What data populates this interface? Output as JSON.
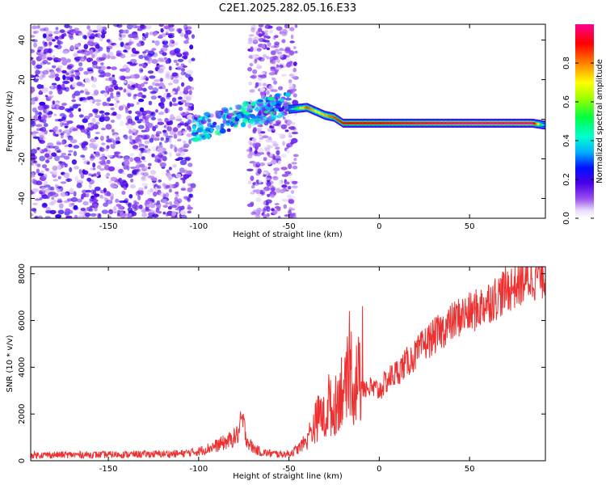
{
  "title": "C2E1.2025.282.05.16.E33",
  "chart_data": [
    {
      "type": "heatmap",
      "title": "",
      "xlabel": "Height of straight line (km)",
      "ylabel": "Frequency (Hz)",
      "xlim": [
        -193,
        92
      ],
      "ylim": [
        -50,
        48
      ],
      "xticks": [
        -150,
        -100,
        -50,
        0,
        50
      ],
      "yticks": [
        -40,
        -20,
        0,
        20,
        40
      ],
      "colorbar": {
        "label": "Normalized spectral amplitude",
        "range": [
          0,
          1
        ],
        "ticks": [
          0.0,
          0.2,
          0.4,
          0.6,
          0.8
        ],
        "colors": [
          "#ffffff",
          "#d8c8f8",
          "#8f40f0",
          "#5000e0",
          "#0000ff",
          "#00c0ff",
          "#00ffb0",
          "#00ff00",
          "#ffff00",
          "#ff8000",
          "#ff0000",
          "#ff0090"
        ]
      },
      "regions": [
        {
          "name": "noise",
          "x": [
            -193,
            -103
          ],
          "freq": [
            -50,
            48
          ],
          "amplitude": 0.15
        },
        {
          "name": "noise",
          "x": [
            -72,
            -46
          ],
          "freq": [
            -50,
            48
          ],
          "amplitude": 0.12
        },
        {
          "name": "signal-onset",
          "x": [
            -103,
            -50
          ],
          "freq_center": [
            -5,
            8
          ],
          "amplitude": 0.35
        }
      ],
      "signal_line": {
        "x": [
          -50,
          -40,
          -35,
          -30,
          -25,
          -20,
          0,
          20,
          50,
          85,
          92
        ],
        "freq": [
          5,
          6,
          4,
          2,
          1,
          -2,
          -2,
          -2,
          -2,
          -2,
          -3
        ],
        "amplitude": [
          0.3,
          0.85,
          0.7,
          0.75,
          0.85,
          0.9,
          0.9,
          0.95,
          1.0,
          1.0,
          0.3
        ]
      }
    },
    {
      "type": "line",
      "title": "",
      "xlabel": "Height of straight line (km)",
      "ylabel": "SNR (10 * v/v)",
      "xlim": [
        -193,
        92
      ],
      "ylim": [
        0,
        8300
      ],
      "xticks": [
        -150,
        -100,
        -50,
        0,
        50
      ],
      "yticks": [
        0,
        2000,
        4000,
        6000,
        8000
      ],
      "series": [
        {
          "name": "SNR",
          "color": "#ee3030",
          "x": [
            -193,
            -150,
            -110,
            -100,
            -90,
            -82,
            -78,
            -76,
            -73,
            -70,
            -65,
            -55,
            -50,
            -45,
            -40,
            -35,
            -32,
            -30,
            -28,
            -26,
            -24,
            -22,
            -20,
            -18,
            -16,
            -14,
            -12,
            -10,
            -5,
            0,
            5,
            10,
            15,
            20,
            25,
            30,
            35,
            40,
            45,
            50,
            55,
            60,
            65,
            70,
            75,
            80,
            85,
            92
          ],
          "y": [
            250,
            260,
            300,
            400,
            650,
            900,
            1150,
            1800,
            850,
            550,
            350,
            280,
            300,
            500,
            900,
            1700,
            2100,
            1600,
            2600,
            2000,
            2400,
            2900,
            3300,
            2500,
            4200,
            3000,
            3600,
            3200,
            3100,
            3000,
            3500,
            3800,
            4200,
            4500,
            5000,
            5300,
            5600,
            5900,
            6200,
            6300,
            6500,
            6800,
            7000,
            7300,
            7500,
            7700,
            7900,
            8000
          ]
        }
      ],
      "annotations": [
        {
          "x": -73,
          "y": 2500,
          "text": ""
        },
        {
          "x": -12,
          "y": 6300,
          "text": ""
        }
      ]
    }
  ]
}
